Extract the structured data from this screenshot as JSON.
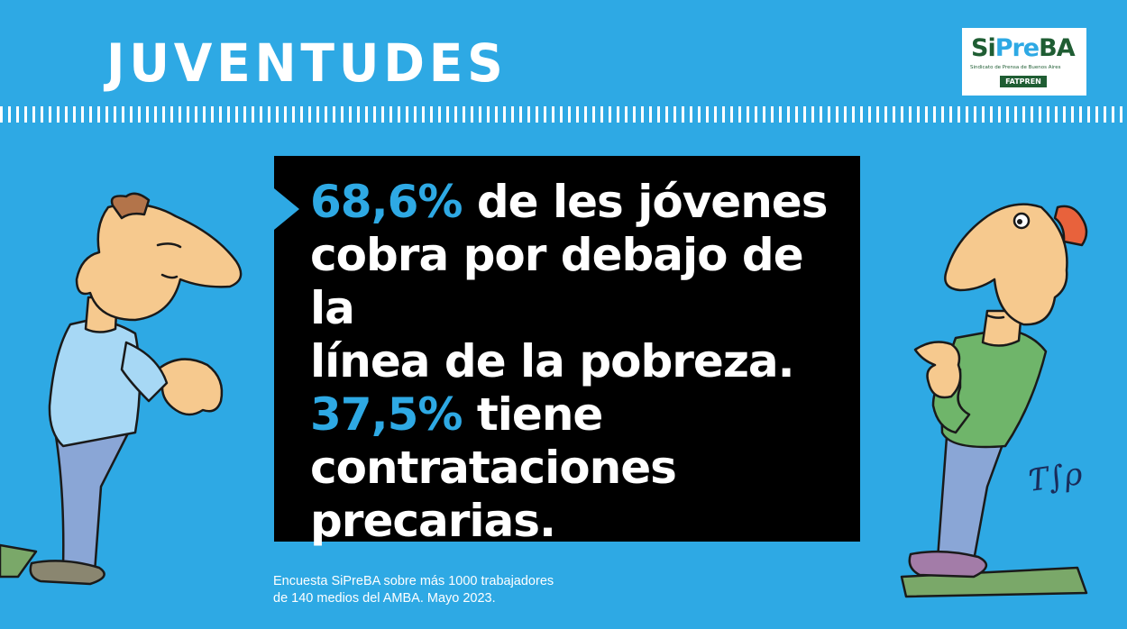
{
  "title": "JUVENTUDES",
  "logo": {
    "main_si": "Si",
    "main_pre": "Pre",
    "main_ba": "BA",
    "subtitle": "Sindicato de Prensa de Buenos Aires",
    "badge": "FATPREN"
  },
  "quote": {
    "stat1": "68,6%",
    "text1_a": " de les jóvenes",
    "text1_b": "cobra por debajo de la",
    "text1_c": "línea de la pobreza.",
    "stat2": "37,5%",
    "text2_a": " tiene",
    "text2_b": "contrataciones",
    "text2_c": "precarias."
  },
  "footnote": {
    "line1": "Encuesta SiPreBA sobre más 1000 trabajadores",
    "line2": "de 140 medios del AMBA. Mayo 2023."
  },
  "colors": {
    "background": "#2ea9e4",
    "highlight": "#2ea9e4",
    "box": "#000000",
    "text": "#ffffff"
  }
}
